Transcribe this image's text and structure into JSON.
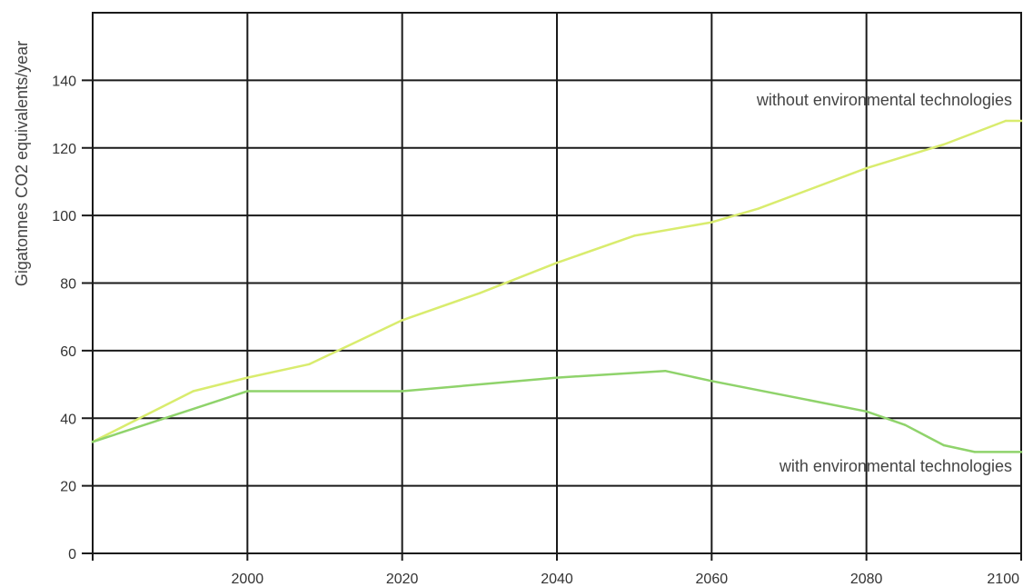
{
  "chart_data": {
    "type": "line",
    "title": "",
    "xlabel": "",
    "ylabel": "Gigatonnes CO2 equivalents/year",
    "xlim": [
      1980,
      2100
    ],
    "ylim": [
      0,
      160
    ],
    "grid": true,
    "x_ticks": [
      2000,
      2020,
      2040,
      2060,
      2080,
      2100
    ],
    "x_tick_labels": [
      "2000",
      "2020",
      "2040",
      "2060",
      "2080",
      "2100"
    ],
    "y_ticks": [
      0,
      20,
      40,
      60,
      80,
      100,
      120,
      140
    ],
    "y_tick_labels": [
      "0",
      "20",
      "40",
      "60",
      "80",
      "100",
      "120",
      "140"
    ],
    "series": [
      {
        "name": "without environmental technologies",
        "color": "#d9ec6e",
        "points": [
          [
            1980,
            33
          ],
          [
            1993,
            48
          ],
          [
            2000,
            52
          ],
          [
            2008,
            56
          ],
          [
            2020,
            69
          ],
          [
            2030,
            77
          ],
          [
            2040,
            86
          ],
          [
            2050,
            94
          ],
          [
            2060,
            98
          ],
          [
            2066,
            102
          ],
          [
            2080,
            114
          ],
          [
            2090,
            121
          ],
          [
            2098,
            128
          ],
          [
            2100,
            128
          ]
        ]
      },
      {
        "name": "with environmental technologies",
        "color": "#8fd36b",
        "points": [
          [
            1980,
            33
          ],
          [
            2000,
            48
          ],
          [
            2020,
            48
          ],
          [
            2040,
            52
          ],
          [
            2054,
            54
          ],
          [
            2060,
            51
          ],
          [
            2080,
            42
          ],
          [
            2085,
            38
          ],
          [
            2090,
            32
          ],
          [
            2094,
            30
          ],
          [
            2100,
            30
          ]
        ]
      }
    ]
  }
}
